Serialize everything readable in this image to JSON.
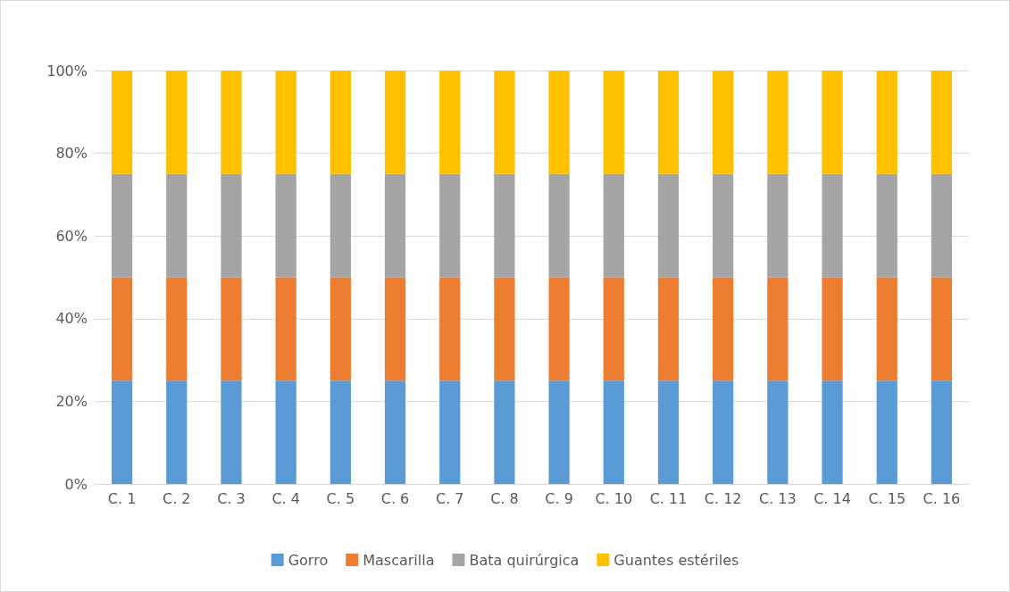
{
  "chart_data": {
    "type": "bar",
    "stacked": true,
    "categories": [
      "C. 1",
      "C. 2",
      "C. 3",
      "C. 4",
      "C. 5",
      "C. 6",
      "C. 7",
      "C. 8",
      "C. 9",
      "C. 10",
      "C. 11",
      "C. 12",
      "C. 13",
      "C. 14",
      "C. 15",
      "C. 16"
    ],
    "series": [
      {
        "name": "Gorro",
        "color": "#5b9bd5",
        "values": [
          25,
          25,
          25,
          25,
          25,
          25,
          25,
          25,
          25,
          25,
          25,
          25,
          25,
          25,
          25,
          25
        ]
      },
      {
        "name": "Mascarilla",
        "color": "#ed7d31",
        "values": [
          25,
          25,
          25,
          25,
          25,
          25,
          25,
          25,
          25,
          25,
          25,
          25,
          25,
          25,
          25,
          25
        ]
      },
      {
        "name": "Bata quirúrgica",
        "color": "#a5a5a5",
        "values": [
          25,
          25,
          25,
          25,
          25,
          25,
          25,
          25,
          25,
          25,
          25,
          25,
          25,
          25,
          25,
          25
        ]
      },
      {
        "name": "Guantes estériles",
        "color": "#ffc000",
        "values": [
          25,
          25,
          25,
          25,
          25,
          25,
          25,
          25,
          25,
          25,
          25,
          25,
          25,
          25,
          25,
          25
        ]
      }
    ],
    "ylim": [
      0,
      100
    ],
    "yticks": [
      {
        "value": 0,
        "label": "0%"
      },
      {
        "value": 20,
        "label": "20%"
      },
      {
        "value": 40,
        "label": "40%"
      },
      {
        "value": 60,
        "label": "60%"
      },
      {
        "value": 80,
        "label": "80%"
      },
      {
        "value": 100,
        "label": "100%"
      }
    ],
    "grid": "y",
    "legend": "bottom"
  }
}
